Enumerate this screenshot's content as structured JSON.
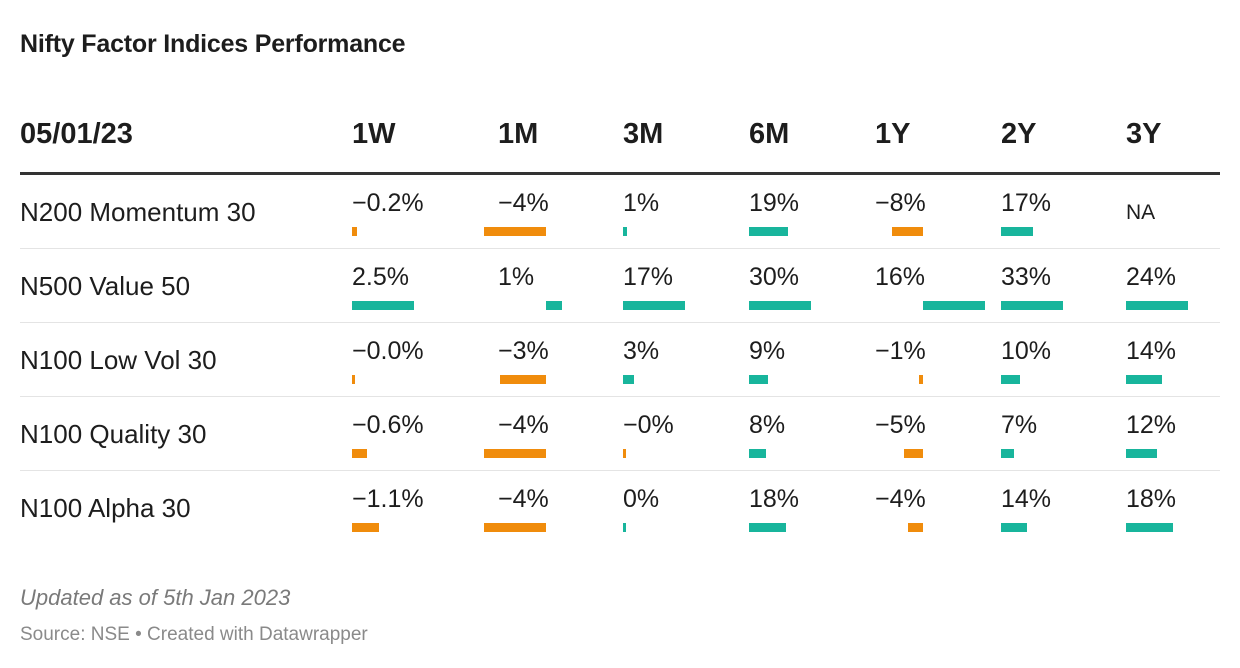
{
  "title": "Nifty Factor Indices Performance",
  "colors": {
    "positive": "#18b59c",
    "negative": "#f08c0c",
    "rule": "#333333"
  },
  "chart_data": {
    "type": "table",
    "header_label": "05/01/23",
    "columns": [
      "1W",
      "1M",
      "3M",
      "6M",
      "1Y",
      "2Y",
      "3Y"
    ],
    "rows": [
      {
        "name": "N200 Momentum 30",
        "labels": [
          "−0.2%",
          "−4%",
          "1%",
          "19%",
          "−8%",
          "17%",
          "NA"
        ],
        "values": [
          -0.2,
          -4,
          1,
          19,
          -8,
          17,
          null
        ]
      },
      {
        "name": "N500 Value 50",
        "labels": [
          "2.5%",
          "1%",
          "17%",
          "30%",
          "16%",
          "33%",
          "24%"
        ],
        "values": [
          2.5,
          1,
          17,
          30,
          16,
          33,
          24
        ]
      },
      {
        "name": "N100 Low Vol 30",
        "labels": [
          "−0.0%",
          "−3%",
          "3%",
          "9%",
          "−1%",
          "10%",
          "14%"
        ],
        "values": [
          -0.04,
          -3,
          3,
          9,
          -1,
          10,
          14
        ]
      },
      {
        "name": "N100 Quality 30",
        "labels": [
          "−0.6%",
          "−4%",
          "−0%",
          "8%",
          "−5%",
          "7%",
          "12%"
        ],
        "values": [
          -0.6,
          -4,
          -0.2,
          8,
          -5,
          7,
          12
        ]
      },
      {
        "name": "N100 Alpha 30",
        "labels": [
          "−1.1%",
          "−4%",
          "0%",
          "18%",
          "−4%",
          "14%",
          "18%"
        ],
        "values": [
          -1.1,
          -4,
          0.2,
          18,
          -4,
          14,
          18
        ]
      }
    ]
  },
  "footer": {
    "note": "Updated as of 5th Jan 2023",
    "source": "Source: NSE • Created with Datawrapper"
  }
}
